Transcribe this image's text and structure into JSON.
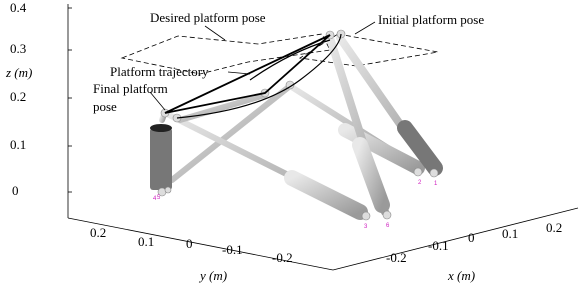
{
  "axes": {
    "z_label": "z (m)",
    "z_ticks": [
      "0.4",
      "0.3",
      "0.2",
      "0.1",
      "0"
    ],
    "y_label": "y (m)",
    "y_ticks": [
      "0.2",
      "0.1",
      "0",
      "-0.1",
      "-0.2"
    ],
    "x_label": "x (m)",
    "x_ticks": [
      "-0.2",
      "-0.1",
      "0",
      "0.1",
      "0.2"
    ]
  },
  "annotations": [
    "Desired platform pose",
    "Initial platform pose",
    "Platform trajectory",
    "Final platform",
    "pose"
  ],
  "joint_labels": [
    "4",
    "5",
    "2",
    "1",
    "3",
    "6"
  ]
}
